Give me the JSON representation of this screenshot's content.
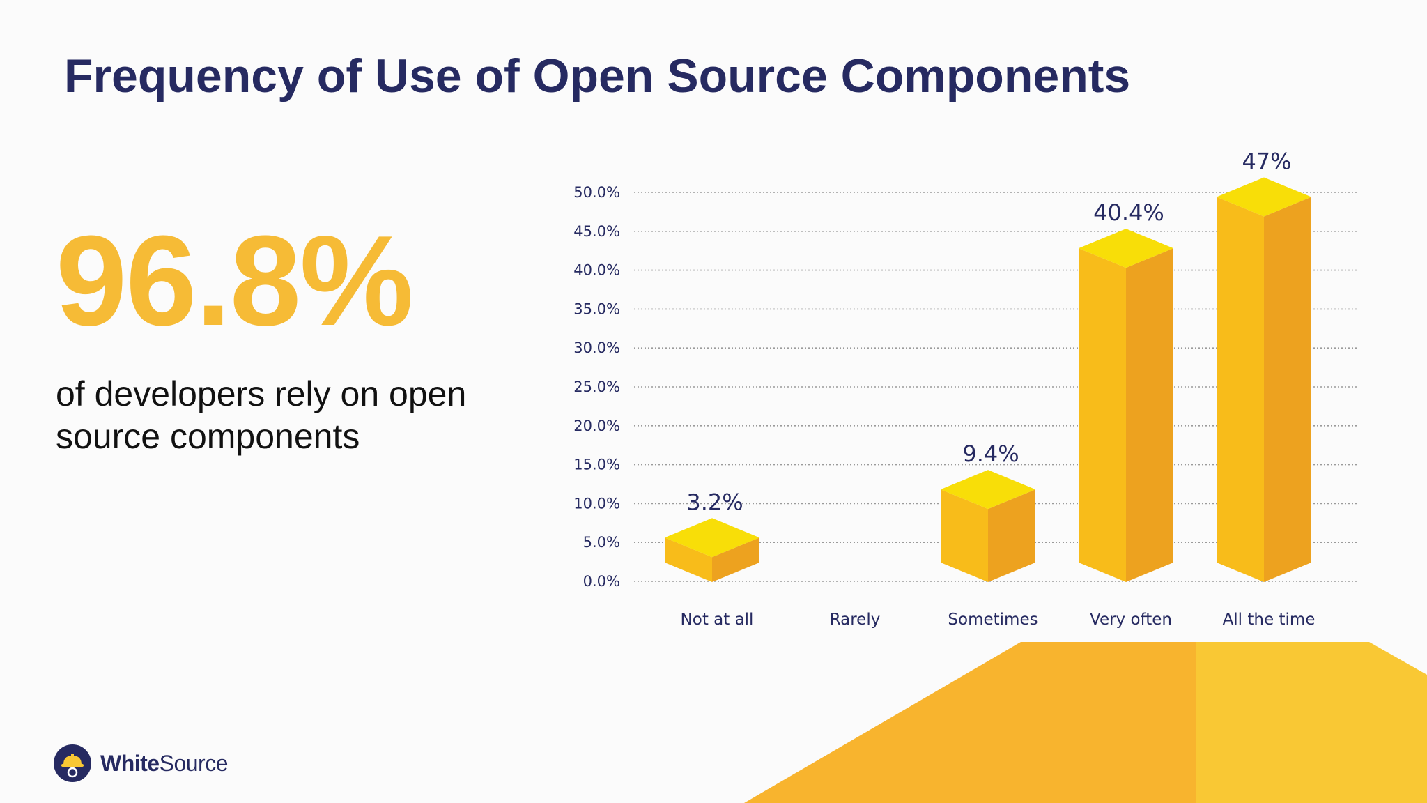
{
  "title": "Frequency of Use of Open Source Components",
  "headline_stat": "96.8%",
  "headline_caption": "of developers rely on open source components",
  "brand": {
    "bold": "White",
    "regular": "Source"
  },
  "colors": {
    "title": "#262a61",
    "stat": "#f6bb36",
    "bar_front": "#f8bc1a",
    "bar_side": "#eda21f",
    "bar_top": "#f8de08",
    "decor_left": "#f8b42e",
    "decor_right": "#f9c834"
  },
  "chart_data": {
    "type": "bar",
    "categories": [
      "Not at all",
      "Rarely",
      "Sometimes",
      "Very often",
      "All the time"
    ],
    "values": [
      3.2,
      0,
      9.4,
      40.4,
      47
    ],
    "data_labels": [
      "3.2%",
      "",
      "9.4%",
      "40.4%",
      "47%"
    ],
    "y_ticks": [
      "0.0%",
      "5.0%",
      "10.0%",
      "15.0%",
      "20.0%",
      "25.0%",
      "30.0%",
      "35.0%",
      "40.0%",
      "45.0%",
      "50.0%"
    ],
    "ylim": [
      0,
      50
    ],
    "grid": true,
    "style": "3d-column"
  }
}
